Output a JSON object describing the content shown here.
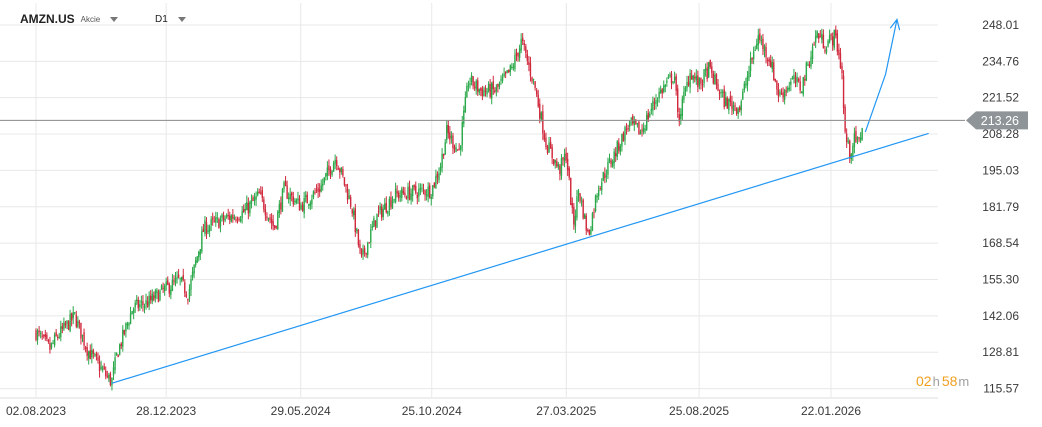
{
  "header": {
    "symbol": "AMZN.US",
    "instrument_type": "Akcie",
    "timeframe": "D1"
  },
  "countdown": {
    "hours": "02",
    "hours_unit": "h",
    "minutes": "58",
    "minutes_unit": "m"
  },
  "colors": {
    "bull": "#2ba84a",
    "bear": "#d0283c",
    "trendline": "#2196f3",
    "price_line": "#8a8a8a",
    "price_tag_bg": "#8e9497",
    "grid": "#e8e8e8",
    "timer": "#f0a020"
  },
  "chart_data": {
    "type": "candlestick",
    "symbol": "AMZN.US",
    "timeframe": "D1",
    "current_price": 213.26,
    "ylim": [
      112.5,
      256
    ],
    "y_ticks": [
      248.01,
      234.76,
      221.52,
      208.28,
      195.03,
      181.79,
      168.54,
      155.3,
      142.06,
      128.81,
      115.57
    ],
    "x_ticks": [
      "02.08.2023",
      "28.12.2023",
      "29.05.2024",
      "25.10.2024",
      "27.03.2025",
      "25.08.2025",
      "22.01.2026"
    ],
    "grid": true,
    "close_path": [
      [
        "2023-08-02",
        136
      ],
      [
        "2023-08-18",
        130
      ],
      [
        "2023-08-25",
        134
      ],
      [
        "2023-09-15",
        142
      ],
      [
        "2023-09-29",
        130
      ],
      [
        "2023-10-19",
        121
      ],
      [
        "2023-10-27",
        118
      ],
      [
        "2023-11-02",
        128
      ],
      [
        "2023-11-20",
        145
      ],
      [
        "2023-12-08",
        147
      ],
      [
        "2023-12-28",
        152
      ],
      [
        "2024-01-12",
        155
      ],
      [
        "2024-01-22",
        150
      ],
      [
        "2024-02-09",
        174
      ],
      [
        "2024-03-01",
        177
      ],
      [
        "2024-03-26",
        180
      ],
      [
        "2024-04-12",
        186
      ],
      [
        "2024-04-29",
        174
      ],
      [
        "2024-05-10",
        188
      ],
      [
        "2024-05-29",
        182
      ],
      [
        "2024-06-21",
        189
      ],
      [
        "2024-07-08",
        200
      ],
      [
        "2024-07-26",
        182
      ],
      [
        "2024-08-06",
        162
      ],
      [
        "2024-08-23",
        178
      ],
      [
        "2024-09-13",
        186
      ],
      [
        "2024-10-04",
        187
      ],
      [
        "2024-10-25",
        188
      ],
      [
        "2024-11-04",
        197
      ],
      [
        "2024-11-11",
        209
      ],
      [
        "2024-11-25",
        202
      ],
      [
        "2024-12-06",
        228
      ],
      [
        "2024-12-20",
        224
      ],
      [
        "2025-01-06",
        224
      ],
      [
        "2025-01-24",
        232
      ],
      [
        "2025-02-04",
        242
      ],
      [
        "2025-02-19",
        226
      ],
      [
        "2025-03-04",
        205
      ],
      [
        "2025-03-19",
        195
      ],
      [
        "2025-03-27",
        201
      ],
      [
        "2025-04-04",
        175
      ],
      [
        "2025-04-10",
        188
      ],
      [
        "2025-04-21",
        171
      ],
      [
        "2025-05-02",
        189
      ],
      [
        "2025-05-21",
        201
      ],
      [
        "2025-06-06",
        212
      ],
      [
        "2025-06-20",
        209
      ],
      [
        "2025-07-08",
        222
      ],
      [
        "2025-07-28",
        230
      ],
      [
        "2025-08-01",
        213
      ],
      [
        "2025-08-15",
        231
      ],
      [
        "2025-08-25",
        226
      ],
      [
        "2025-09-05",
        232
      ],
      [
        "2025-09-23",
        220
      ],
      [
        "2025-10-10",
        218
      ],
      [
        "2025-10-31",
        244
      ],
      [
        "2025-11-14",
        235
      ],
      [
        "2025-11-24",
        222
      ],
      [
        "2025-12-10",
        228
      ],
      [
        "2025-12-19",
        225
      ],
      [
        "2026-01-06",
        245
      ],
      [
        "2026-01-15",
        241
      ],
      [
        "2026-01-27",
        244
      ],
      [
        "2026-02-04",
        230
      ],
      [
        "2026-02-06",
        210
      ],
      [
        "2026-02-12",
        201
      ],
      [
        "2026-02-17",
        206
      ],
      [
        "2026-02-23",
        205
      ],
      [
        "2026-02-27",
        213.26
      ]
    ],
    "annotations": [
      {
        "type": "trendline",
        "from": [
          "2023-10-27",
          117.5
        ],
        "to": [
          "2026-05-13",
          208.5
        ]
      },
      {
        "type": "arrow",
        "points": [
          [
            "2026-03-02",
            209
          ],
          [
            "2026-03-25",
            230
          ],
          [
            "2026-04-07",
            250
          ]
        ]
      },
      {
        "type": "horizontal_line",
        "y": 213.26
      }
    ]
  }
}
